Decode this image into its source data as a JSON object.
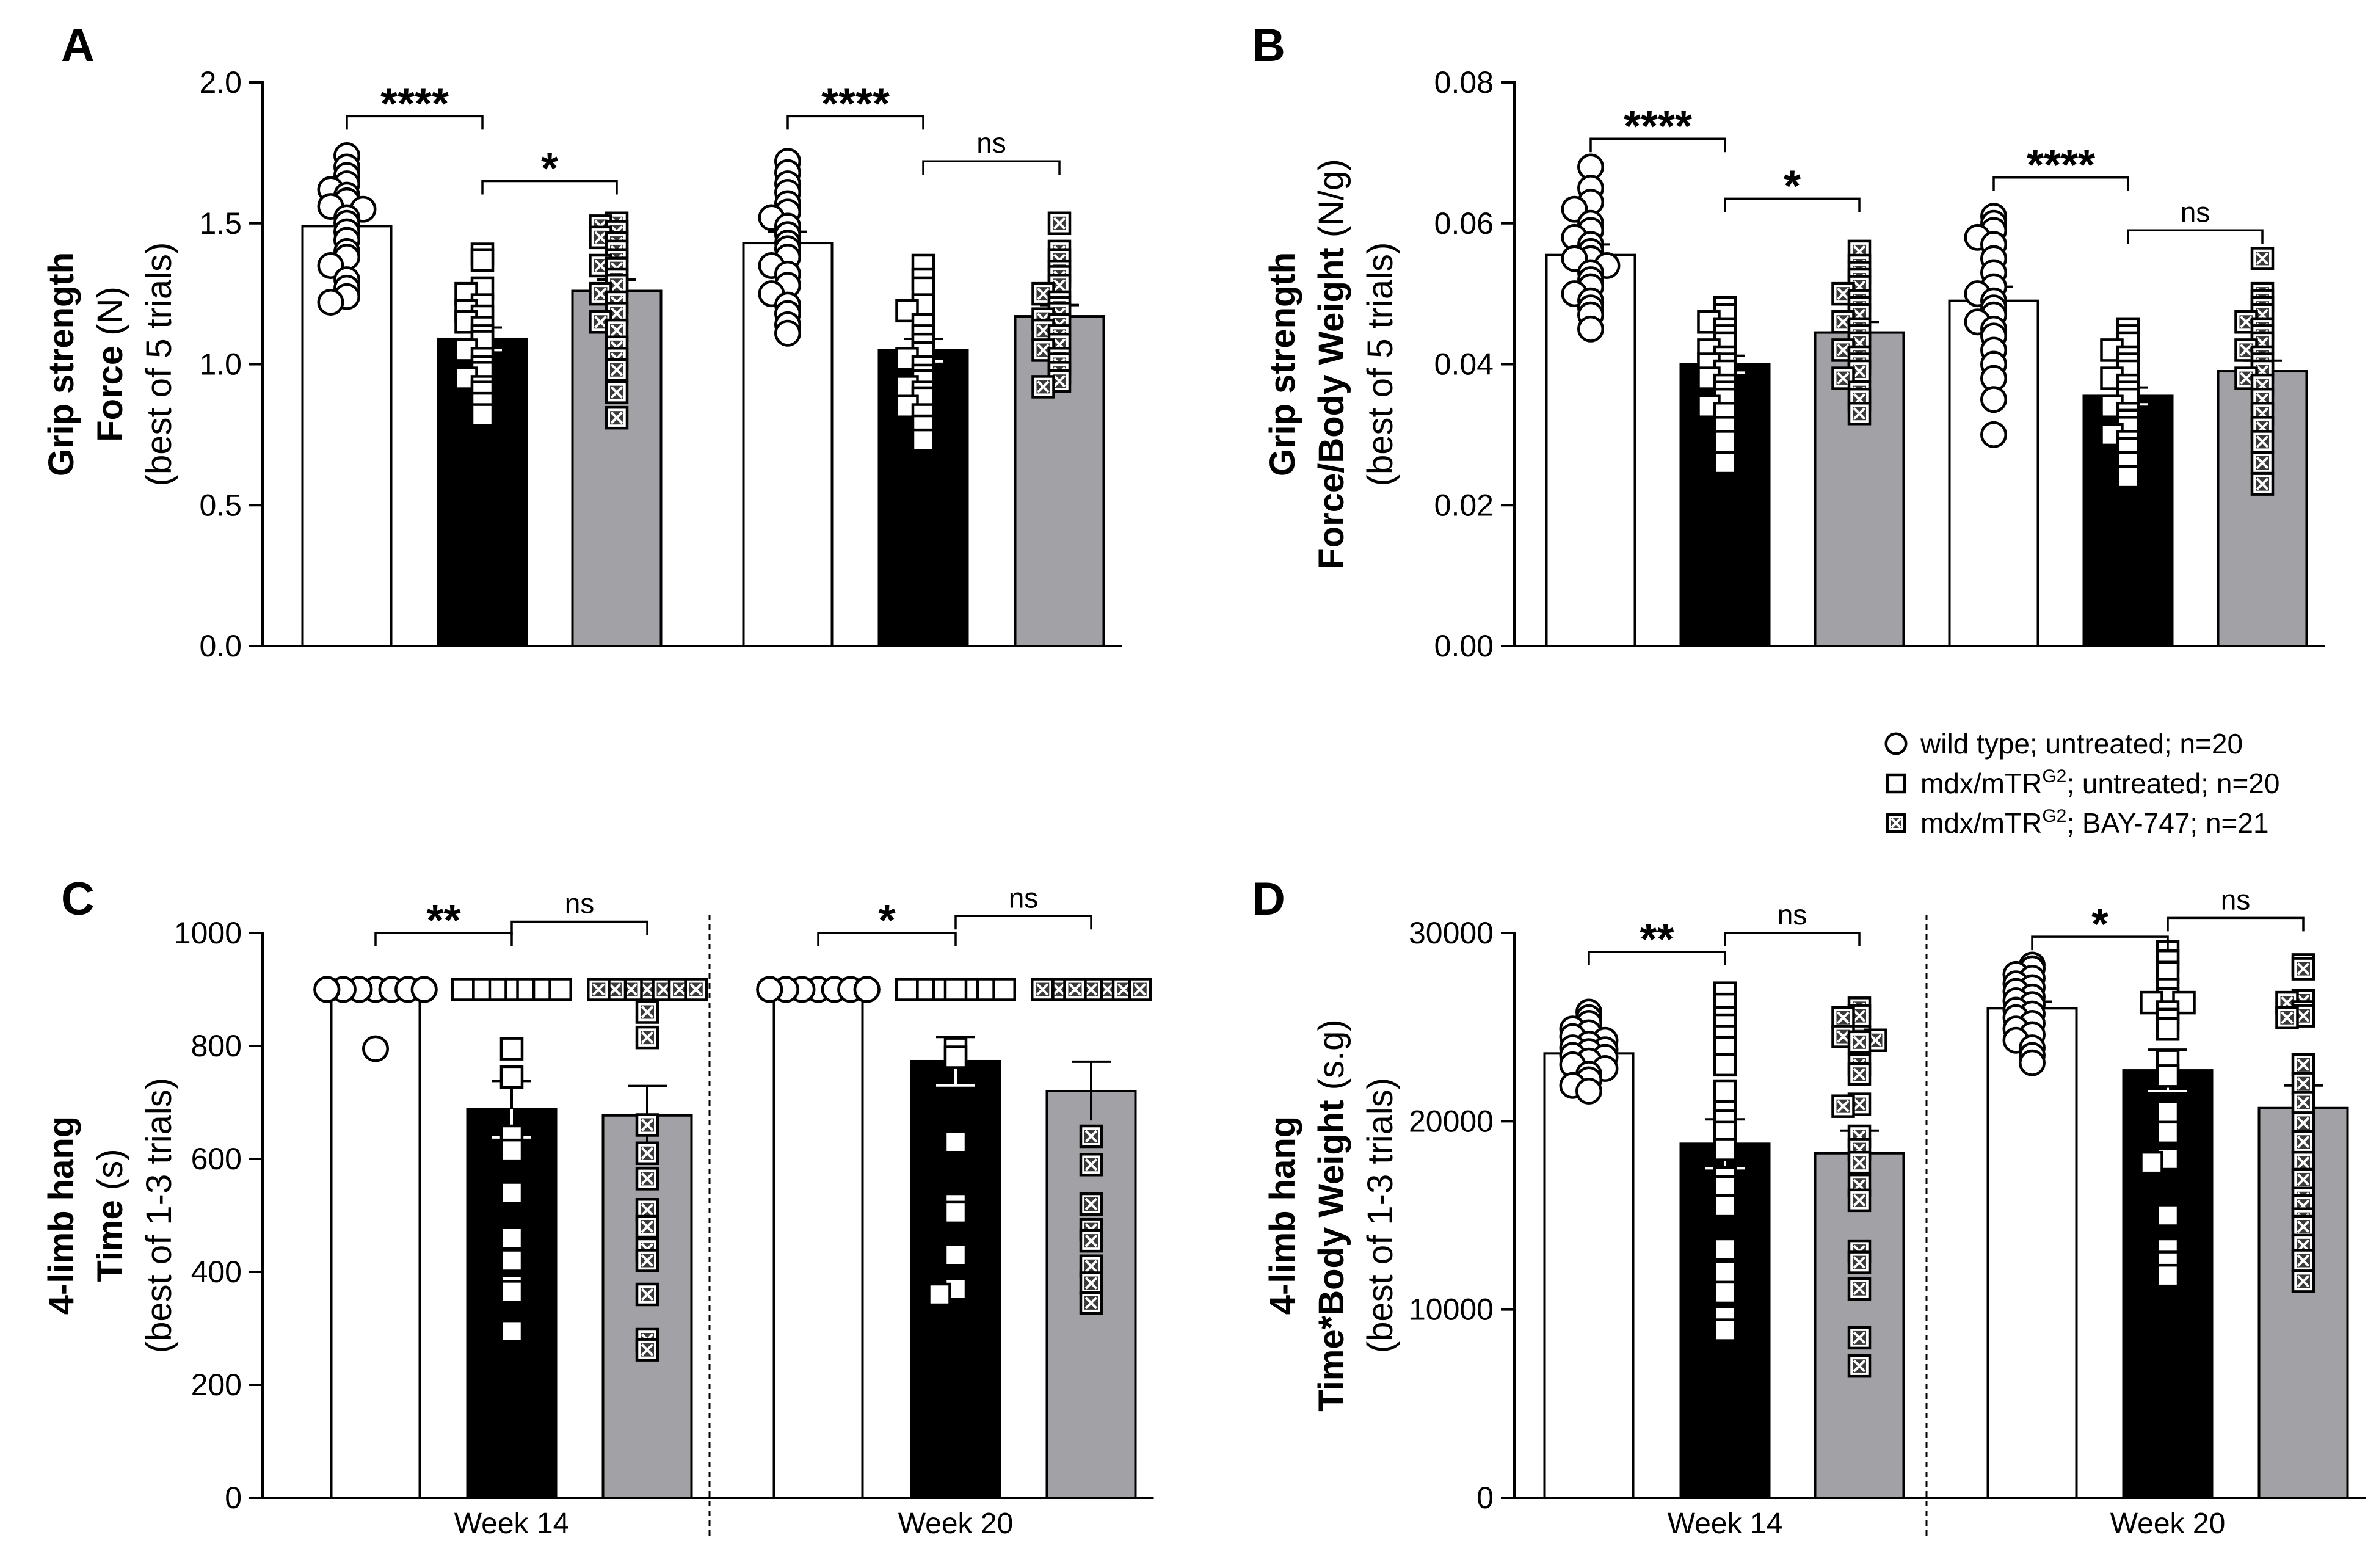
{
  "groups": {
    "wt": {
      "name": "wild type; untreated",
      "marker": "circle",
      "bar_color": "#ffffff"
    },
    "mdx": {
      "name": "mdx/mTRG2; untreated",
      "marker": "square",
      "bar_color": "#000000"
    },
    "bay": {
      "name": "mdx/mTRG2; BAY-747",
      "marker": "xsquare",
      "bar_color": "#a2a2a6"
    }
  },
  "legend": [
    {
      "marker": "circle",
      "text": "wild type; untreated; n=20"
    },
    {
      "marker": "square",
      "prefix": "mdx/mTR",
      "sup": "G2",
      "suffix": "; untreated; n=20"
    },
    {
      "marker": "xsquare",
      "prefix": "mdx/mTR",
      "sup": "G2",
      "suffix": "; BAY-747; n=21"
    }
  ],
  "x_groups": [
    "Week 14",
    "Week 20"
  ],
  "chart_data": [
    {
      "type": "bar",
      "panel": "A",
      "ylabel_lines": [
        "Grip strength",
        "Force (N)",
        "(best of 5 trials)"
      ],
      "ylim": [
        0,
        2.0
      ],
      "yticks": [
        0.0,
        0.5,
        1.0,
        1.5,
        2.0
      ],
      "ytick_labels": [
        "0.0",
        "0.5",
        "1.0",
        "1.5",
        "2.0"
      ],
      "show_week_labels": false,
      "bars": [
        {
          "week": "Week 14",
          "group": "wt",
          "mean": 1.49,
          "sem": 0.04,
          "points": [
            1.74,
            1.7,
            1.67,
            1.64,
            1.62,
            1.6,
            1.58,
            1.56,
            1.55,
            1.52,
            1.5,
            1.47,
            1.44,
            1.4,
            1.38,
            1.35,
            1.3,
            1.27,
            1.24,
            1.22
          ]
        },
        {
          "week": "Week 14",
          "group": "mdx",
          "mean": 1.09,
          "sem": 0.04,
          "points": [
            1.39,
            1.37,
            1.27,
            1.25,
            1.21,
            1.19,
            1.17,
            1.15,
            1.13,
            1.1,
            1.08,
            1.05,
            1.02,
            0.99,
            0.97,
            0.95,
            0.92,
            0.9,
            0.86,
            0.82
          ]
        },
        {
          "week": "Week 14",
          "group": "bay",
          "mean": 1.26,
          "sem": 0.04,
          "points": [
            1.5,
            1.49,
            1.47,
            1.45,
            1.43,
            1.4,
            1.37,
            1.35,
            1.34,
            1.3,
            1.28,
            1.25,
            1.22,
            1.18,
            1.15,
            1.12,
            1.06,
            1.02,
            0.98,
            0.9,
            0.81
          ]
        },
        {
          "week": "Week 20",
          "group": "wt",
          "mean": 1.43,
          "sem": 0.04,
          "points": [
            1.72,
            1.68,
            1.64,
            1.61,
            1.57,
            1.54,
            1.52,
            1.49,
            1.46,
            1.43,
            1.41,
            1.38,
            1.35,
            1.32,
            1.28,
            1.25,
            1.21,
            1.18,
            1.14,
            1.11
          ]
        },
        {
          "week": "Week 20",
          "group": "mdx",
          "mean": 1.05,
          "sem": 0.04,
          "points": [
            1.35,
            1.3,
            1.27,
            1.21,
            1.19,
            1.14,
            1.1,
            1.07,
            1.04,
            1.02,
            0.99,
            0.96,
            0.94,
            0.92,
            0.9,
            0.88,
            0.85,
            0.82,
            0.78,
            0.73
          ]
        },
        {
          "week": "Week 20",
          "group": "bay",
          "mean": 1.17,
          "sem": 0.04,
          "points": [
            1.5,
            1.4,
            1.37,
            1.33,
            1.31,
            1.28,
            1.25,
            1.22,
            1.2,
            1.18,
            1.16,
            1.14,
            1.12,
            1.1,
            1.07,
            1.05,
            1.02,
            1.0,
            0.97,
            0.94,
            0.92
          ]
        }
      ],
      "sig": [
        {
          "from": 0,
          "to": 1,
          "label": "****",
          "y": 1.88
        },
        {
          "from": 1,
          "to": 2,
          "label": "*",
          "y": 1.65
        },
        {
          "from": 3,
          "to": 4,
          "label": "****",
          "y": 1.88
        },
        {
          "from": 4,
          "to": 5,
          "label": "ns",
          "y": 1.72
        }
      ]
    },
    {
      "type": "bar",
      "panel": "B",
      "ylabel_lines": [
        "Grip strength",
        "Force/Body Weight (N/g)",
        "(best of 5 trials)"
      ],
      "ylim": [
        0,
        0.08
      ],
      "yticks": [
        0.0,
        0.02,
        0.04,
        0.06,
        0.08
      ],
      "ytick_labels": [
        "0.00",
        "0.02",
        "0.04",
        "0.06",
        "0.08"
      ],
      "show_week_labels": false,
      "bars": [
        {
          "week": "Week 14",
          "group": "wt",
          "mean": 0.0555,
          "sem": 0.0015,
          "points": [
            0.068,
            0.065,
            0.063,
            0.062,
            0.06,
            0.059,
            0.058,
            0.057,
            0.056,
            0.055,
            0.055,
            0.054,
            0.053,
            0.052,
            0.051,
            0.05,
            0.049,
            0.048,
            0.047,
            0.045
          ]
        },
        {
          "week": "Week 14",
          "group": "mdx",
          "mean": 0.04,
          "sem": 0.0012,
          "points": [
            0.048,
            0.047,
            0.046,
            0.045,
            0.044,
            0.043,
            0.042,
            0.041,
            0.04,
            0.04,
            0.039,
            0.038,
            0.037,
            0.036,
            0.035,
            0.034,
            0.033,
            0.031,
            0.029,
            0.026
          ]
        },
        {
          "week": "Week 14",
          "group": "bay",
          "mean": 0.0445,
          "sem": 0.0015,
          "points": [
            0.056,
            0.054,
            0.053,
            0.052,
            0.051,
            0.05,
            0.049,
            0.048,
            0.047,
            0.046,
            0.045,
            0.044,
            0.043,
            0.042,
            0.041,
            0.04,
            0.039,
            0.038,
            0.036,
            0.035,
            0.033
          ]
        },
        {
          "week": "Week 20",
          "group": "wt",
          "mean": 0.049,
          "sem": 0.002,
          "points": [
            0.061,
            0.06,
            0.059,
            0.058,
            0.057,
            0.055,
            0.053,
            0.051,
            0.05,
            0.049,
            0.048,
            0.047,
            0.046,
            0.045,
            0.044,
            0.042,
            0.04,
            0.038,
            0.035,
            0.03
          ]
        },
        {
          "week": "Week 20",
          "group": "mdx",
          "mean": 0.0355,
          "sem": 0.0012,
          "points": [
            0.045,
            0.044,
            0.043,
            0.042,
            0.041,
            0.04,
            0.039,
            0.038,
            0.037,
            0.036,
            0.035,
            0.034,
            0.033,
            0.032,
            0.031,
            0.03,
            0.029,
            0.028,
            0.026,
            0.024
          ]
        },
        {
          "week": "Week 20",
          "group": "bay",
          "mean": 0.039,
          "sem": 0.0015,
          "points": [
            0.055,
            0.05,
            0.049,
            0.048,
            0.047,
            0.046,
            0.045,
            0.044,
            0.043,
            0.042,
            0.041,
            0.04,
            0.039,
            0.038,
            0.037,
            0.035,
            0.033,
            0.031,
            0.029,
            0.026,
            0.023
          ]
        }
      ],
      "sig": [
        {
          "from": 0,
          "to": 1,
          "label": "****",
          "y": 0.072
        },
        {
          "from": 1,
          "to": 2,
          "label": "*",
          "y": 0.0635
        },
        {
          "from": 3,
          "to": 4,
          "label": "****",
          "y": 0.0665
        },
        {
          "from": 4,
          "to": 5,
          "label": "ns",
          "y": 0.059
        }
      ]
    },
    {
      "type": "bar",
      "panel": "C",
      "ylabel_lines": [
        "4-limb hang",
        "Time (s)",
        "(best of 1-3 trials)"
      ],
      "ylim": [
        0,
        1000
      ],
      "yticks": [
        0,
        200,
        400,
        600,
        800,
        1000
      ],
      "ytick_labels": [
        "0",
        "200",
        "400",
        "600",
        "800",
        "1000"
      ],
      "show_week_labels": true,
      "bars": [
        {
          "week": "Week 14",
          "group": "wt",
          "mean": 895,
          "sem": 5,
          "points": [
            900,
            900,
            900,
            900,
            900,
            900,
            900,
            900,
            900,
            900,
            900,
            900,
            900,
            900,
            900,
            900,
            900,
            900,
            900,
            795
          ]
        },
        {
          "week": "Week 14",
          "group": "mdx",
          "mean": 688,
          "sem": 50,
          "points": [
            900,
            900,
            900,
            900,
            900,
            900,
            900,
            900,
            900,
            900,
            795,
            745,
            640,
            615,
            540,
            460,
            420,
            375,
            365,
            295
          ]
        },
        {
          "week": "Week 14",
          "group": "bay",
          "mean": 677,
          "sem": 52,
          "points": [
            900,
            900,
            900,
            900,
            900,
            900,
            900,
            900,
            900,
            860,
            815,
            660,
            610,
            565,
            510,
            480,
            440,
            420,
            360,
            280,
            262
          ]
        },
        {
          "week": "Week 20",
          "group": "wt",
          "mean": 900,
          "sem": 0,
          "points": [
            900,
            900,
            900,
            900,
            900,
            900,
            900,
            900,
            900,
            900,
            900,
            900,
            900,
            900,
            900,
            900,
            900,
            900,
            900,
            900
          ]
        },
        {
          "week": "Week 20",
          "group": "mdx",
          "mean": 773,
          "sem": 43,
          "points": [
            900,
            900,
            900,
            900,
            900,
            900,
            900,
            900,
            900,
            900,
            900,
            900,
            795,
            780,
            630,
            520,
            505,
            430,
            370,
            360
          ]
        },
        {
          "week": "Week 20",
          "group": "bay",
          "mean": 720,
          "sem": 52,
          "points": [
            900,
            900,
            900,
            900,
            900,
            900,
            900,
            900,
            900,
            900,
            900,
            900,
            900,
            640,
            590,
            520,
            475,
            455,
            410,
            380,
            345
          ]
        }
      ],
      "sig": [
        {
          "from": 0,
          "to": 1,
          "label": "**",
          "y": 1000
        },
        {
          "from": 1,
          "to": 2,
          "label": "ns",
          "y": 1020
        },
        {
          "from": 3,
          "to": 4,
          "label": "*",
          "y": 1000
        },
        {
          "from": 4,
          "to": 5,
          "label": "ns",
          "y": 1030
        }
      ]
    },
    {
      "type": "bar",
      "panel": "D",
      "ylabel_lines": [
        "4-limb hang",
        "Time*Body Weight (s.g)",
        "(best of 1-3 trials)"
      ],
      "ylim": [
        0,
        30000
      ],
      "yticks": [
        0,
        10000,
        20000,
        30000
      ],
      "ytick_labels": [
        "0",
        "10000",
        "20000",
        "30000"
      ],
      "show_week_labels": true,
      "bars": [
        {
          "week": "Week 14",
          "group": "wt",
          "mean": 23600,
          "sem": 300,
          "points": [
            25800,
            25500,
            25200,
            24900,
            24700,
            24500,
            24300,
            24100,
            23900,
            23800,
            23700,
            23500,
            23400,
            23200,
            23000,
            22800,
            22500,
            22200,
            21900,
            21600
          ]
        },
        {
          "week": "Week 14",
          "group": "mdx",
          "mean": 18800,
          "sem": 1300,
          "points": [
            26800,
            26200,
            25500,
            25100,
            24500,
            23900,
            23000,
            21600,
            20500,
            20000,
            19400,
            18500,
            17000,
            16500,
            15500,
            13200,
            12000,
            10900,
            9600,
            8900
          ]
        },
        {
          "week": "Week 14",
          "group": "bay",
          "mean": 18300,
          "sem": 1200,
          "points": [
            26000,
            25600,
            25500,
            24500,
            24500,
            24300,
            24200,
            23000,
            22500,
            20900,
            20800,
            19200,
            18500,
            17800,
            16600,
            15800,
            13100,
            12500,
            11100,
            8500,
            7000
          ]
        },
        {
          "week": "Week 20",
          "group": "wt",
          "mean": 26000,
          "sem": 350,
          "points": [
            28300,
            28100,
            27800,
            27600,
            27300,
            27100,
            26900,
            26600,
            26400,
            26200,
            25900,
            25700,
            25500,
            25200,
            24900,
            24600,
            24300,
            23900,
            23500,
            23100
          ]
        },
        {
          "week": "Week 20",
          "group": "mdx",
          "mean": 22700,
          "sem": 1100,
          "points": [
            29000,
            28500,
            27900,
            27000,
            26500,
            26300,
            26300,
            25800,
            25400,
            24900,
            23200,
            22400,
            20500,
            19400,
            18000,
            17800,
            15000,
            13200,
            12500,
            11800
          ]
        },
        {
          "week": "Week 20",
          "group": "bay",
          "mean": 20700,
          "sem": 1200,
          "points": [
            28300,
            28100,
            26400,
            26300,
            25800,
            25600,
            25500,
            23000,
            22000,
            21000,
            19900,
            18900,
            17800,
            16900,
            15900,
            15500,
            14800,
            14400,
            13400,
            12600,
            11500
          ]
        }
      ],
      "sig": [
        {
          "from": 0,
          "to": 1,
          "label": "**",
          "y": 29000
        },
        {
          "from": 1,
          "to": 2,
          "label": "ns",
          "y": 30000
        },
        {
          "from": 3,
          "to": 4,
          "label": "*",
          "y": 29800
        },
        {
          "from": 4,
          "to": 5,
          "label": "ns",
          "y": 30800
        }
      ]
    }
  ]
}
